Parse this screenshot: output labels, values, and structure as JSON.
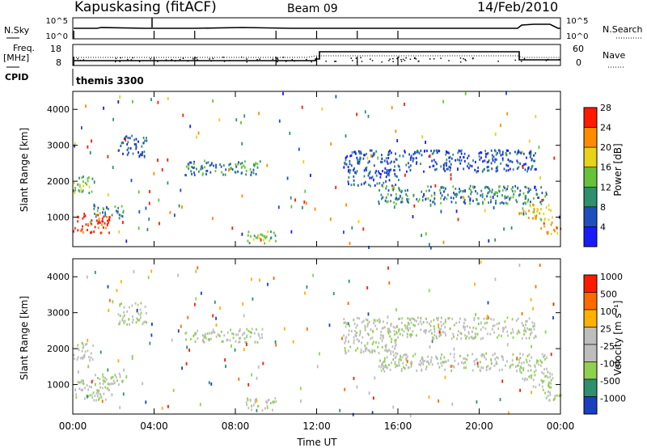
{
  "header": {
    "station": "Kapuskasing (fitACF)",
    "beam": "Beam 09",
    "date": "14/Feb/2010"
  },
  "top_panels": {
    "nsky_label": "N.Sky",
    "nsky_ticks": [
      "10^5",
      "10^0"
    ],
    "nsearch_label": "N.Search",
    "nsearch_ticks": [
      "10^5",
      "10^0"
    ],
    "freq_label": "Freq.",
    "freq_unit": "[MHz]",
    "freq_ticks": [
      "18",
      "8"
    ],
    "nave_label": "Nave",
    "nave_ticks": [
      "60",
      "0"
    ],
    "cpid_label": "CPID",
    "cpid_value": "themis 3300"
  },
  "chart_data": [
    {
      "type": "heatmap",
      "panel": "power",
      "ylabel": "Slant Range [km]",
      "ylim": [
        180,
        4500
      ],
      "yticks": [
        1000,
        2000,
        3000,
        4000
      ],
      "xlim_hours": [
        0,
        24
      ],
      "colorbar": {
        "label": "Power [dB]",
        "levels": [
          "4",
          "8",
          "12",
          "16",
          "20",
          "24",
          "28"
        ],
        "colors": [
          "#1a1aff",
          "#1f4fbf",
          "#2f8f6f",
          "#66c23a",
          "#e8d21a",
          "#ff8c00",
          "#ff1a00"
        ]
      },
      "regions": [
        {
          "t": [
            0.0,
            1.8
          ],
          "r": [
            580,
            1150
          ],
          "level": 6
        },
        {
          "t": [
            0.0,
            1.0
          ],
          "r": [
            1700,
            2200
          ],
          "level": 3
        },
        {
          "t": [
            1.0,
            2.5
          ],
          "r": [
            1000,
            1350
          ],
          "level": 2
        },
        {
          "t": [
            2.2,
            3.6
          ],
          "r": [
            2700,
            3300
          ],
          "level": 1
        },
        {
          "t": [
            5.5,
            9.3
          ],
          "r": [
            2200,
            2600
          ],
          "level": 2
        },
        {
          "t": [
            8.5,
            10.0
          ],
          "r": [
            300,
            650
          ],
          "level": 3
        },
        {
          "t": [
            13.3,
            16.0
          ],
          "r": [
            1900,
            2900
          ],
          "level": 1
        },
        {
          "t": [
            15.0,
            23.3
          ],
          "r": [
            1400,
            1900
          ],
          "level": 2
        },
        {
          "t": [
            16.0,
            22.8
          ],
          "r": [
            2300,
            2900
          ],
          "level": 1
        },
        {
          "t": [
            22.0,
            23.6
          ],
          "r": [
            950,
            1400
          ],
          "level": 4
        },
        {
          "t": [
            23.0,
            24.0
          ],
          "r": [
            550,
            900
          ],
          "level": 5
        }
      ]
    },
    {
      "type": "heatmap",
      "panel": "velocity",
      "xlabel": "Time UT",
      "ylabel": "Slant Range [km]",
      "ylim": [
        180,
        4500
      ],
      "yticks": [
        1000,
        2000,
        3000,
        4000
      ],
      "xticks": [
        "00:00",
        "04:00",
        "08:00",
        "12:00",
        "16:00",
        "20:00",
        "00:00"
      ],
      "colorbar": {
        "label": "Velocity [m s⁻¹]",
        "levels": [
          "1000",
          "500",
          "100",
          "25",
          "-25",
          "-100",
          "-500",
          "-1000"
        ],
        "colors": [
          "#1a3fbf",
          "#2f8f6f",
          "#8fd14f",
          "#bdbdbd",
          "#bdbdbd",
          "#ffb000",
          "#ff6a00",
          "#ff1a00"
        ]
      },
      "regions": [
        {
          "t": [
            0.0,
            1.8
          ],
          "r": [
            580,
            1150
          ],
          "level": 3
        },
        {
          "t": [
            0.0,
            1.0
          ],
          "r": [
            1700,
            2200
          ],
          "level": 3
        },
        {
          "t": [
            1.0,
            2.5
          ],
          "r": [
            1000,
            1350
          ],
          "level": 3
        },
        {
          "t": [
            2.2,
            3.6
          ],
          "r": [
            2700,
            3300
          ],
          "level": 3
        },
        {
          "t": [
            5.5,
            9.3
          ],
          "r": [
            2200,
            2600
          ],
          "level": 3
        },
        {
          "t": [
            8.5,
            10.0
          ],
          "r": [
            300,
            650
          ],
          "level": 3
        },
        {
          "t": [
            13.3,
            16.0
          ],
          "r": [
            1900,
            2900
          ],
          "level": 3
        },
        {
          "t": [
            15.0,
            23.3
          ],
          "r": [
            1400,
            1900
          ],
          "level": 3
        },
        {
          "t": [
            16.0,
            22.8
          ],
          "r": [
            2300,
            2900
          ],
          "level": 3
        },
        {
          "t": [
            22.0,
            23.6
          ],
          "r": [
            950,
            1400
          ],
          "level": 3
        },
        {
          "t": [
            23.0,
            24.0
          ],
          "r": [
            550,
            900
          ],
          "level": 3
        }
      ]
    }
  ]
}
